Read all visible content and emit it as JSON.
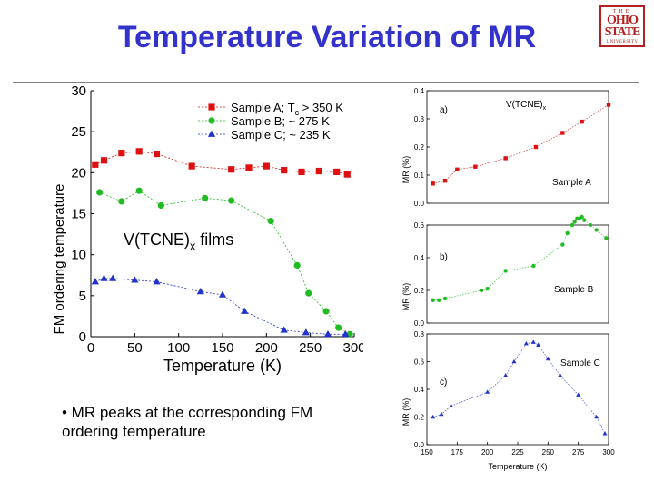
{
  "slide": {
    "title": "Temperature Variation of MR",
    "logo": {
      "line1": "THE",
      "line2": "OHIO",
      "line3": "STATE",
      "line4": "UNIVERSITY"
    },
    "bullet": "• MR peaks at the corresponding FM ordering temperature"
  },
  "chart_data": [
    {
      "type": "line",
      "xlabel": "Temperature (K)",
      "ylabel": "FM ordering temperature",
      "xlim": [
        0,
        300
      ],
      "ylim": [
        0,
        30
      ],
      "xticks": [
        0,
        50,
        100,
        150,
        200,
        250,
        300
      ],
      "yticks": [
        0,
        5,
        10,
        15,
        20,
        25,
        30
      ],
      "annotation": {
        "main": "V(TCNE)",
        "sub": "x",
        "rest": " films"
      },
      "legend_position": "top-right",
      "series": [
        {
          "name": "Sample A; T",
          "name_sub": "c",
          "name_rest": " > 350 K",
          "color": "#dd1111",
          "marker": "square",
          "x": [
            5,
            15,
            35,
            55,
            75,
            115,
            160,
            180,
            200,
            220,
            240,
            260,
            280,
            292
          ],
          "y": [
            21,
            21.5,
            22.4,
            22.6,
            22.3,
            20.8,
            20.4,
            20.6,
            20.8,
            20.3,
            20.1,
            20.2,
            20.1,
            19.8
          ]
        },
        {
          "name": "Sample B;",
          "name_sub": "",
          "name_rest": "   ~ 275 K",
          "color": "#22bb22",
          "marker": "circle",
          "x": [
            10,
            35,
            55,
            80,
            130,
            160,
            205,
            235,
            248,
            268,
            282,
            295
          ],
          "y": [
            17.6,
            16.5,
            17.8,
            16,
            16.9,
            16.6,
            14.1,
            8.7,
            5.3,
            3.1,
            1.1,
            0.3
          ]
        },
        {
          "name": "Sample C;",
          "name_sub": "",
          "name_rest": "   ~ 235 K",
          "color": "#2233cc",
          "marker": "triangle",
          "x": [
            5,
            15,
            25,
            50,
            75,
            125,
            150,
            175,
            220,
            245,
            270,
            290
          ],
          "y": [
            6.7,
            7.1,
            7.1,
            6.9,
            6.7,
            5.5,
            5.1,
            3.1,
            0.8,
            0.5,
            0.3,
            0.3
          ]
        }
      ]
    },
    {
      "type": "scatter",
      "title": "V(TCNE)",
      "title_sub": "x",
      "label": "a)",
      "sample_label": "Sample A",
      "ylabel": "MR (%)",
      "color": "#dd1111",
      "ylim": [
        0,
        0.4
      ],
      "yticks": [
        0.0,
        0.1,
        0.2,
        0.3,
        0.4
      ],
      "x": [
        155,
        165,
        175,
        190,
        215,
        240,
        262,
        278,
        300
      ],
      "y": [
        0.07,
        0.08,
        0.12,
        0.13,
        0.16,
        0.2,
        0.25,
        0.29,
        0.35
      ]
    },
    {
      "type": "scatter",
      "label": "b)",
      "sample_label": "Sample B",
      "ylabel": "MR (%)",
      "color": "#22bb22",
      "ylim": [
        0,
        0.6
      ],
      "yticks": [
        0.0,
        0.2,
        0.4,
        0.6
      ],
      "x": [
        155,
        160,
        165,
        195,
        200,
        215,
        238,
        262,
        266,
        270,
        272,
        274,
        276,
        278,
        280,
        285,
        290,
        298
      ],
      "y": [
        0.14,
        0.14,
        0.15,
        0.2,
        0.21,
        0.32,
        0.35,
        0.48,
        0.55,
        0.6,
        0.62,
        0.64,
        0.64,
        0.65,
        0.63,
        0.6,
        0.57,
        0.52
      ]
    },
    {
      "type": "scatter",
      "label": "c)",
      "sample_label": "Sample C",
      "ylabel": "MR (%)",
      "color": "#2233cc",
      "xlabel": "Temperature (K)",
      "xlim": [
        150,
        300
      ],
      "xticks": [
        150,
        175,
        200,
        225,
        250,
        275,
        300
      ],
      "ylim": [
        0,
        0.8
      ],
      "yticks": [
        0.0,
        0.2,
        0.4,
        0.6,
        0.8
      ],
      "x": [
        155,
        162,
        170,
        200,
        215,
        222,
        232,
        238,
        242,
        250,
        260,
        275,
        290,
        297
      ],
      "y": [
        0.2,
        0.22,
        0.28,
        0.38,
        0.5,
        0.6,
        0.73,
        0.74,
        0.72,
        0.62,
        0.5,
        0.36,
        0.2,
        0.08
      ]
    }
  ]
}
